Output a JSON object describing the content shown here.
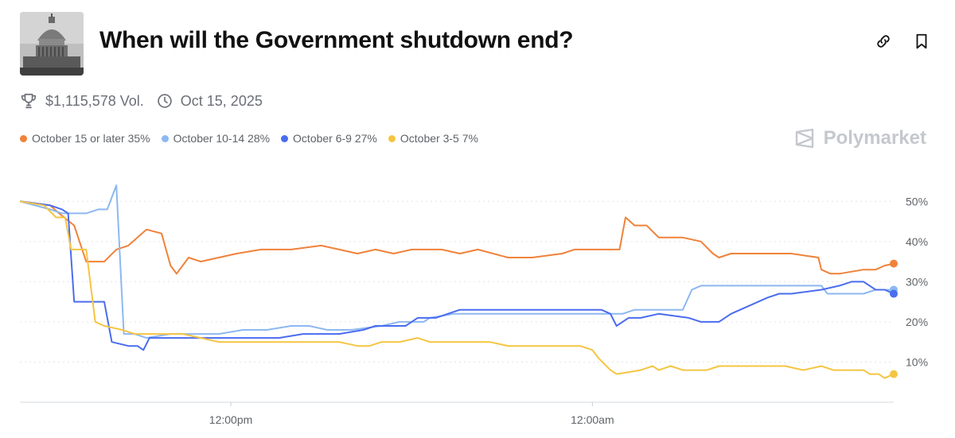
{
  "header": {
    "title": "When will the Government shutdown end?",
    "thumbnail_icon": "capitol-building-image",
    "actions": [
      {
        "name": "link-icon"
      },
      {
        "name": "bookmark-icon"
      }
    ]
  },
  "meta": {
    "volume": "$1,115,578 Vol.",
    "date": "Oct 15, 2025"
  },
  "legend": [
    {
      "label": "October 15 or later 35%",
      "color": "#f0823a"
    },
    {
      "label": "October 10-14 28%",
      "color": "#8db8f2"
    },
    {
      "label": "October 6-9 27%",
      "color": "#4a6cf0"
    },
    {
      "label": "October 3-5 7%",
      "color": "#f5c542"
    }
  ],
  "brand": {
    "name": "Polymarket"
  },
  "chart_data": {
    "type": "line",
    "ylim": [
      0,
      55
    ],
    "y_ticks": [
      10,
      20,
      30,
      40,
      50
    ],
    "y_tick_labels": [
      "10%",
      "20%",
      "30%",
      "40%",
      "50%"
    ],
    "x_ticks": [
      12,
      24
    ],
    "x_tick_labels": [
      "12:00pm",
      "12:00am"
    ],
    "xlim": [
      5,
      34
    ],
    "grid": true,
    "series": [
      {
        "name": "October 15 or later",
        "color": "#f0823a",
        "points": [
          [
            5,
            50
          ],
          [
            6,
            49
          ],
          [
            6.3,
            47
          ],
          [
            6.8,
            44
          ],
          [
            7.2,
            35
          ],
          [
            7.8,
            35
          ],
          [
            8.2,
            38
          ],
          [
            8.6,
            39
          ],
          [
            9.2,
            43
          ],
          [
            9.7,
            42
          ],
          [
            10,
            34
          ],
          [
            10.2,
            32
          ],
          [
            10.6,
            36
          ],
          [
            11,
            35
          ],
          [
            11.6,
            36
          ],
          [
            12.2,
            37
          ],
          [
            13,
            38
          ],
          [
            14,
            38
          ],
          [
            15,
            39
          ],
          [
            15.6,
            38
          ],
          [
            16.2,
            37
          ],
          [
            16.8,
            38
          ],
          [
            17.4,
            37
          ],
          [
            18,
            38
          ],
          [
            19,
            38
          ],
          [
            19.6,
            37
          ],
          [
            20.2,
            38
          ],
          [
            21.2,
            36
          ],
          [
            22,
            36
          ],
          [
            23,
            37
          ],
          [
            23.4,
            38
          ],
          [
            24.4,
            38
          ],
          [
            24.9,
            38
          ],
          [
            25.1,
            46
          ],
          [
            25.4,
            44
          ],
          [
            25.8,
            44
          ],
          [
            26.2,
            41
          ],
          [
            27,
            41
          ],
          [
            27.6,
            40
          ],
          [
            28,
            37
          ],
          [
            28.2,
            36
          ],
          [
            28.6,
            37
          ],
          [
            30,
            37
          ],
          [
            30.6,
            37
          ],
          [
            31.5,
            36
          ],
          [
            31.6,
            33
          ],
          [
            31.9,
            32
          ],
          [
            32.2,
            32
          ],
          [
            33,
            33
          ],
          [
            33.4,
            33
          ],
          [
            33.7,
            34
          ],
          [
            34,
            34.5
          ]
        ]
      },
      {
        "name": "October 10-14",
        "color": "#8db8f2",
        "points": [
          [
            5,
            50
          ],
          [
            6,
            48
          ],
          [
            6.4,
            47
          ],
          [
            6.8,
            47
          ],
          [
            7.2,
            47
          ],
          [
            7.6,
            48
          ],
          [
            7.9,
            48
          ],
          [
            8.2,
            54
          ],
          [
            8.45,
            17
          ],
          [
            8.8,
            17
          ],
          [
            9.2,
            16
          ],
          [
            10,
            17
          ],
          [
            11,
            17
          ],
          [
            11.6,
            17
          ],
          [
            12.4,
            18
          ],
          [
            13.2,
            18
          ],
          [
            14,
            19
          ],
          [
            14.6,
            19
          ],
          [
            15.2,
            18
          ],
          [
            16,
            18
          ],
          [
            17,
            19
          ],
          [
            17.6,
            20
          ],
          [
            18.4,
            20
          ],
          [
            18.6,
            21
          ],
          [
            19.4,
            22
          ],
          [
            20.4,
            22
          ],
          [
            21.6,
            22
          ],
          [
            24.4,
            22
          ],
          [
            25,
            22
          ],
          [
            25.4,
            23
          ],
          [
            26.2,
            23
          ],
          [
            27,
            23
          ],
          [
            27.3,
            28
          ],
          [
            27.6,
            29
          ],
          [
            28,
            29
          ],
          [
            29,
            29
          ],
          [
            30,
            29
          ],
          [
            31.6,
            29
          ],
          [
            31.8,
            27
          ],
          [
            33,
            27
          ],
          [
            33.4,
            28
          ],
          [
            34,
            28
          ]
        ]
      },
      {
        "name": "October 6-9",
        "color": "#4a6cf0",
        "points": [
          [
            5,
            50
          ],
          [
            6,
            49
          ],
          [
            6.4,
            48
          ],
          [
            6.6,
            47
          ],
          [
            6.8,
            25
          ],
          [
            7.4,
            25
          ],
          [
            7.8,
            25
          ],
          [
            8.05,
            15
          ],
          [
            8.6,
            14
          ],
          [
            8.9,
            14
          ],
          [
            9.1,
            13
          ],
          [
            9.3,
            16
          ],
          [
            9.6,
            16
          ],
          [
            10.2,
            16
          ],
          [
            11,
            16
          ],
          [
            13,
            16
          ],
          [
            13.6,
            16
          ],
          [
            14.4,
            17
          ],
          [
            15.6,
            17
          ],
          [
            16.4,
            18
          ],
          [
            16.8,
            19
          ],
          [
            17.8,
            19
          ],
          [
            18.2,
            21
          ],
          [
            18.8,
            21
          ],
          [
            19.2,
            22
          ],
          [
            19.6,
            23
          ],
          [
            21.5,
            23
          ],
          [
            23.6,
            23
          ],
          [
            24.3,
            23
          ],
          [
            24.6,
            22
          ],
          [
            24.8,
            19
          ],
          [
            25.2,
            21
          ],
          [
            25.6,
            21
          ],
          [
            26.2,
            22
          ],
          [
            27.2,
            21
          ],
          [
            27.6,
            20
          ],
          [
            28.2,
            20
          ],
          [
            28.6,
            22
          ],
          [
            29.2,
            24
          ],
          [
            29.8,
            26
          ],
          [
            30.2,
            27
          ],
          [
            30.6,
            27
          ],
          [
            31.6,
            28
          ],
          [
            32.2,
            29
          ],
          [
            32.6,
            30
          ],
          [
            33,
            30
          ],
          [
            33.4,
            28
          ],
          [
            33.7,
            28
          ],
          [
            34,
            27
          ]
        ]
      },
      {
        "name": "October 3-5",
        "color": "#f5c542",
        "points": [
          [
            5,
            50
          ],
          [
            5.8,
            49
          ],
          [
            6.2,
            46
          ],
          [
            6.5,
            46
          ],
          [
            6.7,
            38
          ],
          [
            7.2,
            38
          ],
          [
            7.5,
            20
          ],
          [
            7.8,
            19
          ],
          [
            8.4,
            18
          ],
          [
            8.8,
            17
          ],
          [
            9.6,
            17
          ],
          [
            10.4,
            17
          ],
          [
            11,
            16
          ],
          [
            11.6,
            15
          ],
          [
            12.4,
            15
          ],
          [
            14,
            15
          ],
          [
            15.6,
            15
          ],
          [
            16.2,
            14
          ],
          [
            16.6,
            14
          ],
          [
            17,
            15
          ],
          [
            17.6,
            15
          ],
          [
            18.2,
            16
          ],
          [
            18.6,
            15
          ],
          [
            19.6,
            15
          ],
          [
            20.6,
            15
          ],
          [
            21.2,
            14
          ],
          [
            22.2,
            14
          ],
          [
            23.6,
            14
          ],
          [
            24,
            13
          ],
          [
            24.2,
            11
          ],
          [
            24.6,
            8
          ],
          [
            24.8,
            7
          ],
          [
            25.6,
            8
          ],
          [
            26,
            9
          ],
          [
            26.2,
            8
          ],
          [
            26.6,
            9
          ],
          [
            27,
            8
          ],
          [
            27.8,
            8
          ],
          [
            28.2,
            9
          ],
          [
            29,
            9
          ],
          [
            30.4,
            9
          ],
          [
            31,
            8
          ],
          [
            31.6,
            9
          ],
          [
            32,
            8
          ],
          [
            32.8,
            8
          ],
          [
            33,
            8
          ],
          [
            33.2,
            7
          ],
          [
            33.5,
            7
          ],
          [
            33.7,
            6
          ],
          [
            34,
            7
          ]
        ]
      }
    ]
  }
}
